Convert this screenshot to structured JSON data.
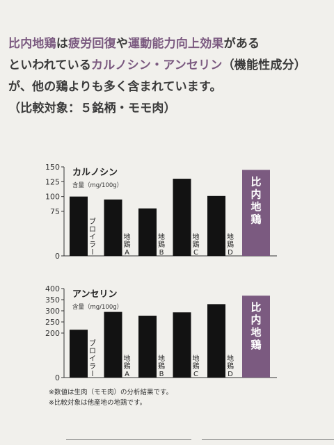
{
  "headline": {
    "parts": [
      {
        "text": "比内地鶏",
        "color": "#7b5a80"
      },
      {
        "text": "は",
        "color": "#3a3a3a"
      },
      {
        "text": "疲労回復",
        "color": "#7b5a80"
      },
      {
        "text": "や",
        "color": "#3a3a3a"
      },
      {
        "text": "運動能力向上効果",
        "color": "#7b5a80"
      },
      {
        "text": "がある",
        "color": "#3a3a3a"
      },
      {
        "text": "といわれている",
        "color": "#3a3a3a"
      },
      {
        "text": "カルノシン・アンセリン",
        "color": "#7b5a80"
      },
      {
        "text": "（機能性成分）が、他の鶏よりも多く含まれています。",
        "color": "#3a3a3a"
      },
      {
        "text": "（比較対象：５銘柄・モモ肉）",
        "color": "#3a3a3a"
      }
    ]
  },
  "colors": {
    "bar": "#121212",
    "highlight": "#7b5a80",
    "highlight_text": "#ffffff"
  },
  "chart_data": [
    {
      "type": "bar",
      "title": "カルノシン",
      "ylabel": "含量（mg/100g）",
      "ylim": [
        0,
        150
      ],
      "yticks": [
        0,
        75,
        100,
        125,
        150
      ],
      "categories": [
        "ブロイラー",
        "地鶏A",
        "地鶏B",
        "地鶏C",
        "地鶏D",
        "比内地鶏"
      ],
      "values": [
        100,
        95,
        80,
        130,
        101,
        145
      ],
      "highlight_index": 5
    },
    {
      "type": "bar",
      "title": "アンセリン",
      "ylabel": "含量（mg/100g）",
      "ylim": [
        0,
        400
      ],
      "yticks": [
        0,
        200,
        250,
        300,
        350,
        400
      ],
      "categories": [
        "ブロイラー",
        "地鶏A",
        "地鶏B",
        "地鶏C",
        "地鶏D",
        "比内地鶏"
      ],
      "values": [
        215,
        295,
        278,
        293,
        330,
        368
      ],
      "highlight_index": 5
    }
  ],
  "notes": [
    "※数値は生肉（モモ肉）の分析結果です。",
    "※比較対象は他産地の地鶏です。"
  ]
}
